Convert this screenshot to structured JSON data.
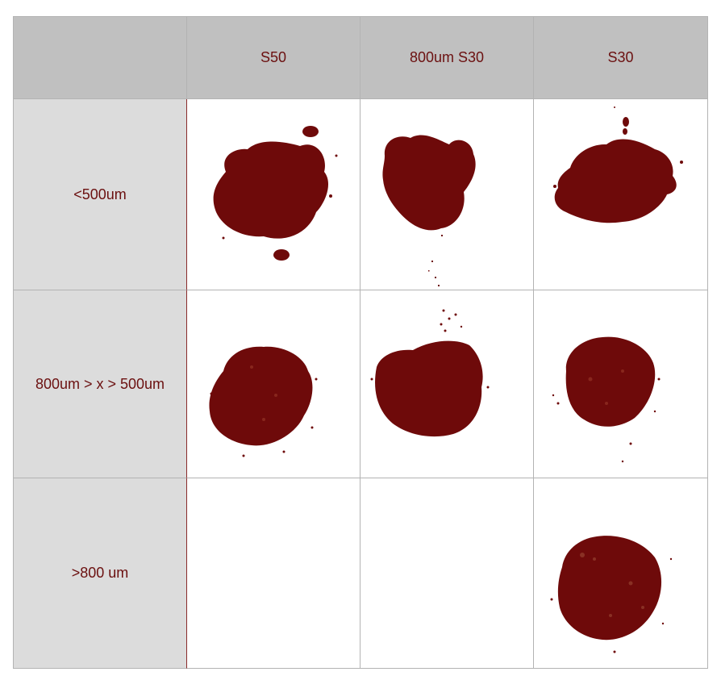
{
  "table": {
    "corner": "",
    "columns": [
      "S50",
      "800um S30",
      "S30"
    ],
    "rows": [
      {
        "label": "<500um",
        "cells": [
          "powder-s50-fine",
          "powder-800-s30-fine",
          "powder-s30-fine"
        ]
      },
      {
        "label": "800um > x > 500um",
        "cells": [
          "powder-s50-mid",
          "powder-800-s30-mid",
          "powder-s30-mid"
        ]
      },
      {
        "label": ">800 um",
        "cells": [
          "empty",
          "empty",
          "powder-s30-coarse"
        ]
      }
    ]
  },
  "colors": {
    "powder": "#6e0a0a",
    "powder_light": "#8a2a20",
    "header_bg": "#c0c0c0",
    "rowhead_bg": "#dcdcdc",
    "text": "#6b1010"
  }
}
